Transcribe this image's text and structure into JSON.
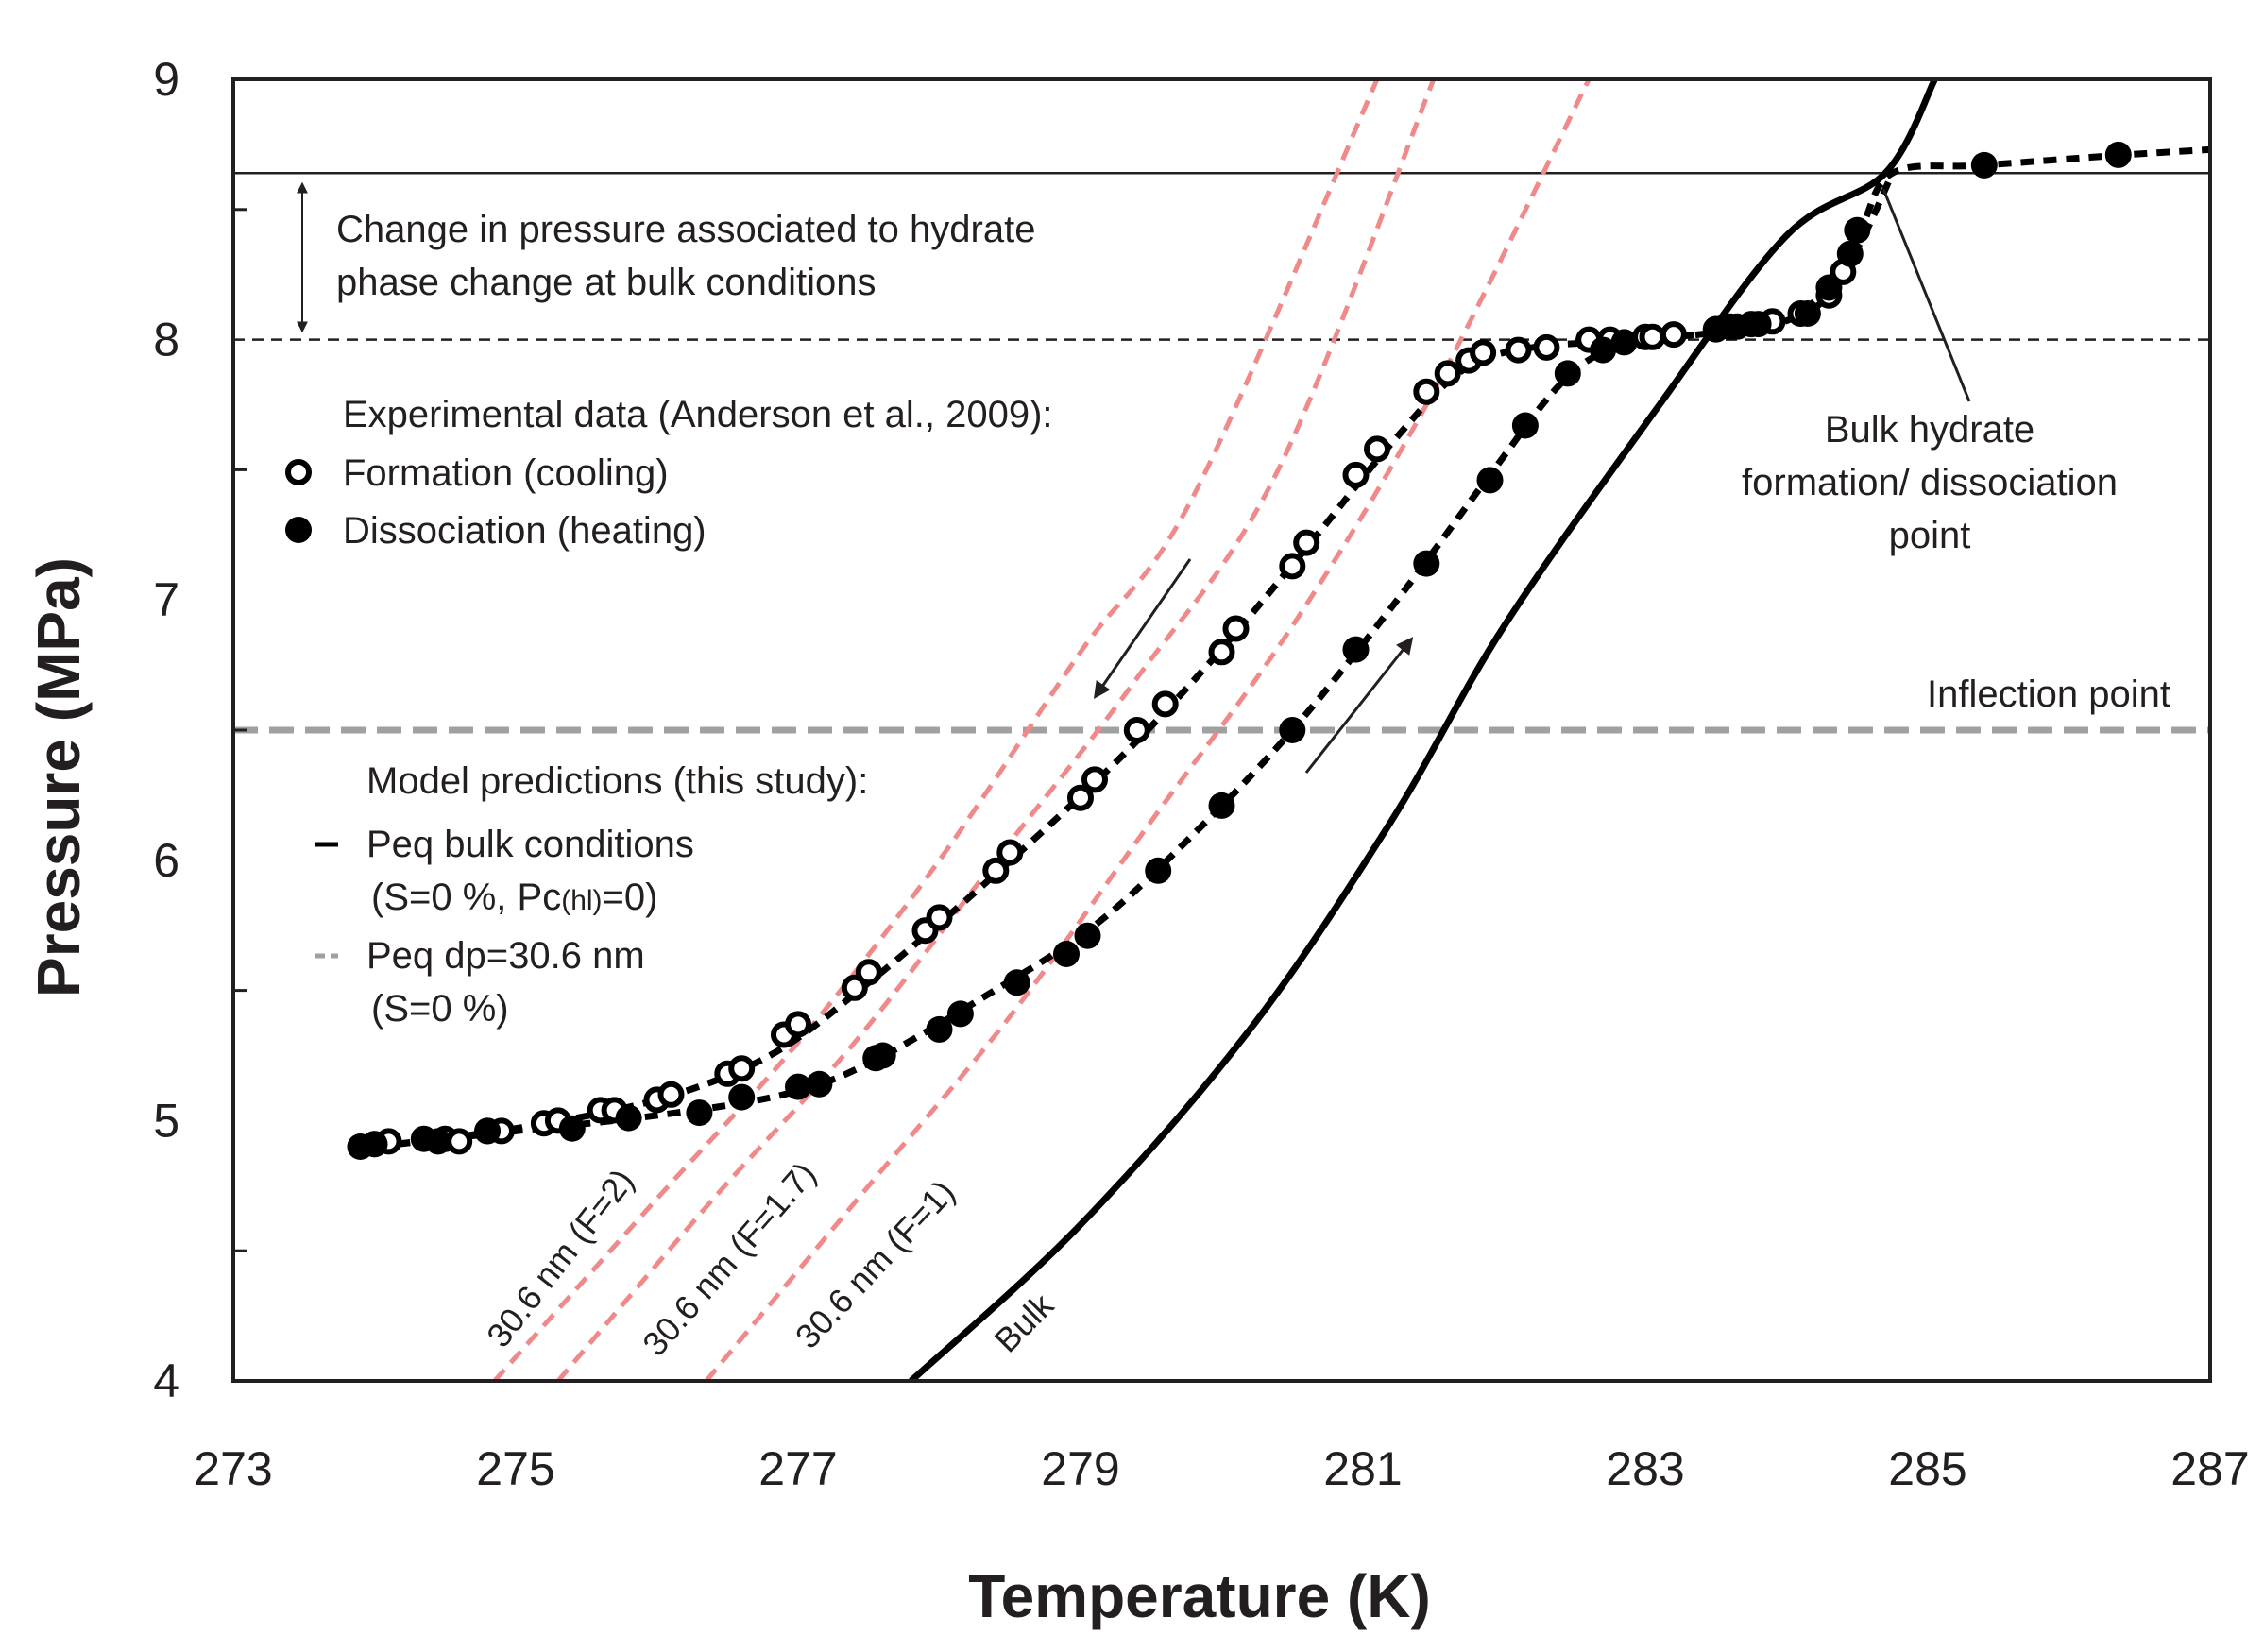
{
  "chart_data": {
    "type": "scatter",
    "xlabel": "Temperature (K)",
    "ylabel": "Pressure (MPa)",
    "xlim": [
      273,
      287
    ],
    "ylim": [
      4,
      9
    ],
    "x_ticks": [
      "273",
      "275",
      "277",
      "279",
      "281",
      "283",
      "285",
      "287"
    ],
    "y_ticks": [
      "4",
      "5",
      "6",
      "7",
      "8",
      "9"
    ],
    "grid": false,
    "legend_placement": "left, inside plot",
    "legend": {
      "experimental_title": "Experimental data (Anderson et al., 2009):",
      "formation": "Formation (cooling)",
      "dissociation": "Dissociation (heating)",
      "model_title": "Model predictions (this study):",
      "peq_bulk": "Peq bulk  conditions",
      "peq_bulk_cond_a": "(S=0 %,  Pc",
      "peq_bulk_cond_sub": "(hl)",
      "peq_bulk_cond_b": "=0)",
      "peq_dp": "Peq dp=30.6 nm",
      "peq_dp_cond": "(S=0 %)"
    },
    "annotations": {
      "pressure_change_line1": "Change in pressure associated to hydrate",
      "pressure_change_line2": "phase change at bulk conditions",
      "bulk_point_line1": "Bulk hydrate",
      "bulk_point_line2": "formation/ dissociation",
      "bulk_point_line3": "point",
      "inflection": "Inflection point"
    },
    "reference_lines": {
      "bulk_pressure": 8.64,
      "eight_mpa": 8.0,
      "inflection_pressure": 6.5,
      "bulk_point": [
        284.7,
        8.64
      ]
    },
    "series": [
      {
        "name": "Formation (cooling)",
        "marker": "open-circle",
        "points": [
          [
            274.0,
            4.91
          ],
          [
            274.1,
            4.92
          ],
          [
            274.5,
            4.93
          ],
          [
            274.6,
            4.92
          ],
          [
            274.8,
            4.96
          ],
          [
            274.9,
            4.96
          ],
          [
            275.2,
            4.99
          ],
          [
            275.3,
            5.0
          ],
          [
            275.6,
            5.04
          ],
          [
            275.7,
            5.04
          ],
          [
            276.0,
            5.08
          ],
          [
            276.1,
            5.1
          ],
          [
            276.5,
            5.18
          ],
          [
            276.6,
            5.2
          ],
          [
            276.9,
            5.33
          ],
          [
            277.0,
            5.37
          ],
          [
            277.4,
            5.51
          ],
          [
            277.5,
            5.57
          ],
          [
            277.9,
            5.73
          ],
          [
            278.0,
            5.78
          ],
          [
            278.4,
            5.96
          ],
          [
            278.5,
            6.03
          ],
          [
            279.0,
            6.24
          ],
          [
            279.1,
            6.31
          ],
          [
            279.4,
            6.5
          ],
          [
            279.6,
            6.6
          ],
          [
            280.0,
            6.8
          ],
          [
            280.1,
            6.89
          ],
          [
            280.5,
            7.13
          ],
          [
            280.6,
            7.22
          ],
          [
            280.95,
            7.48
          ],
          [
            281.1,
            7.58
          ],
          [
            281.45,
            7.8
          ],
          [
            281.6,
            7.87
          ],
          [
            281.75,
            7.92
          ],
          [
            281.85,
            7.95
          ],
          [
            282.1,
            7.96
          ],
          [
            282.3,
            7.97
          ],
          [
            282.6,
            8.0
          ],
          [
            282.75,
            8.0
          ],
          [
            283.0,
            8.01
          ],
          [
            283.05,
            8.01
          ],
          [
            283.2,
            8.02
          ],
          [
            283.5,
            8.04
          ],
          [
            283.6,
            8.05
          ],
          [
            283.75,
            8.06
          ],
          [
            283.9,
            8.07
          ],
          [
            284.1,
            8.1
          ],
          [
            284.3,
            8.17
          ],
          [
            284.4,
            8.26
          ]
        ]
      },
      {
        "name": "Dissociation (heating)",
        "marker": "filled-circle",
        "points": [
          [
            273.9,
            4.9
          ],
          [
            274.0,
            4.91
          ],
          [
            274.35,
            4.93
          ],
          [
            274.45,
            4.92
          ],
          [
            274.8,
            4.96
          ],
          [
            275.4,
            4.97
          ],
          [
            275.8,
            5.01
          ],
          [
            276.3,
            5.03
          ],
          [
            276.6,
            5.09
          ],
          [
            277.0,
            5.13
          ],
          [
            277.15,
            5.14
          ],
          [
            277.55,
            5.24
          ],
          [
            277.6,
            5.25
          ],
          [
            278.0,
            5.35
          ],
          [
            278.15,
            5.41
          ],
          [
            278.55,
            5.53
          ],
          [
            278.9,
            5.64
          ],
          [
            279.05,
            5.71
          ],
          [
            279.55,
            5.96
          ],
          [
            280.0,
            6.21
          ],
          [
            280.5,
            6.5
          ],
          [
            280.95,
            6.81
          ],
          [
            281.45,
            7.14
          ],
          [
            281.9,
            7.46
          ],
          [
            282.15,
            7.67
          ],
          [
            282.45,
            7.87
          ],
          [
            282.7,
            7.96
          ],
          [
            282.85,
            7.99
          ],
          [
            283.5,
            8.04
          ],
          [
            283.65,
            8.05
          ],
          [
            283.8,
            8.06
          ],
          [
            284.15,
            8.1
          ],
          [
            284.3,
            8.2
          ],
          [
            284.45,
            8.33
          ],
          [
            284.5,
            8.42
          ],
          [
            285.4,
            8.67
          ],
          [
            286.35,
            8.71
          ]
        ]
      },
      {
        "name": "Peq bulk  conditions",
        "style": "solid-black",
        "points": [
          [
            277.8,
            4.0
          ],
          [
            279.0,
            4.6
          ],
          [
            280.2,
            5.35
          ],
          [
            281.2,
            6.15
          ],
          [
            282.0,
            6.9
          ],
          [
            283.1,
            7.75
          ],
          [
            284.0,
            8.4
          ],
          [
            284.7,
            8.64
          ],
          [
            285.05,
            9.0
          ]
        ]
      },
      {
        "name": "30.6 nm (F=2)",
        "style": "dashed-salmon",
        "points": [
          [
            274.85,
            4.0
          ],
          [
            276.0,
            4.7
          ],
          [
            277.0,
            5.3
          ],
          [
            278.0,
            6.0
          ],
          [
            279.0,
            6.8
          ],
          [
            279.8,
            7.4
          ],
          [
            281.1,
            9.0
          ]
        ]
      },
      {
        "name": "30.6 nm (F=1.7)",
        "style": "dashed-salmon",
        "points": [
          [
            275.3,
            4.0
          ],
          [
            276.4,
            4.7
          ],
          [
            277.4,
            5.3
          ],
          [
            278.4,
            6.0
          ],
          [
            279.4,
            6.7
          ],
          [
            280.4,
            7.5
          ],
          [
            281.5,
            9.0
          ]
        ]
      },
      {
        "name": "30.6 nm (F=1)",
        "style": "dashed-salmon",
        "points": [
          [
            276.35,
            4.0
          ],
          [
            277.5,
            4.75
          ],
          [
            278.5,
            5.4
          ],
          [
            279.5,
            6.15
          ],
          [
            280.5,
            6.9
          ],
          [
            281.5,
            7.8
          ],
          [
            282.6,
            9.0
          ]
        ]
      },
      {
        "name": "Model fit (cooling)",
        "style": "dashed-black",
        "points": [
          [
            274.0,
            4.9
          ],
          [
            275.0,
            4.97
          ],
          [
            276.0,
            5.08
          ],
          [
            276.8,
            5.25
          ],
          [
            277.5,
            5.53
          ],
          [
            278.3,
            5.9
          ],
          [
            279.2,
            6.35
          ],
          [
            279.9,
            6.75
          ],
          [
            280.6,
            7.2
          ],
          [
            281.2,
            7.6
          ],
          [
            281.7,
            7.88
          ],
          [
            282.2,
            7.97
          ],
          [
            283.0,
            8.0
          ],
          [
            283.8,
            8.05
          ],
          [
            284.2,
            8.12
          ],
          [
            284.5,
            8.35
          ],
          [
            284.75,
            8.64
          ]
        ]
      },
      {
        "name": "Model fit (heating)",
        "style": "dashed-black",
        "points": [
          [
            274.0,
            4.9
          ],
          [
            275.0,
            4.96
          ],
          [
            276.0,
            5.02
          ],
          [
            276.9,
            5.1
          ],
          [
            277.5,
            5.22
          ],
          [
            278.3,
            5.47
          ],
          [
            279.1,
            5.75
          ],
          [
            279.8,
            6.1
          ],
          [
            280.5,
            6.5
          ],
          [
            281.2,
            6.97
          ],
          [
            281.9,
            7.48
          ],
          [
            282.4,
            7.83
          ],
          [
            282.8,
            7.97
          ],
          [
            283.5,
            8.03
          ],
          [
            284.1,
            8.1
          ],
          [
            284.5,
            8.4
          ],
          [
            284.75,
            8.64
          ],
          [
            285.4,
            8.67
          ],
          [
            286.4,
            8.71
          ],
          [
            287.0,
            8.73
          ]
        ]
      }
    ],
    "curve_labels": {
      "f2": "30.6 nm (F=2)",
      "f17": "30.6 nm (F=1.7)",
      "f1": "30.6 nm (F=1)",
      "bulk": "Bulk"
    },
    "colors": {
      "axis": "#231f20",
      "salmon": "#f08a8a",
      "gray_dashed": "#a0a0a0",
      "black": "#000000"
    }
  }
}
